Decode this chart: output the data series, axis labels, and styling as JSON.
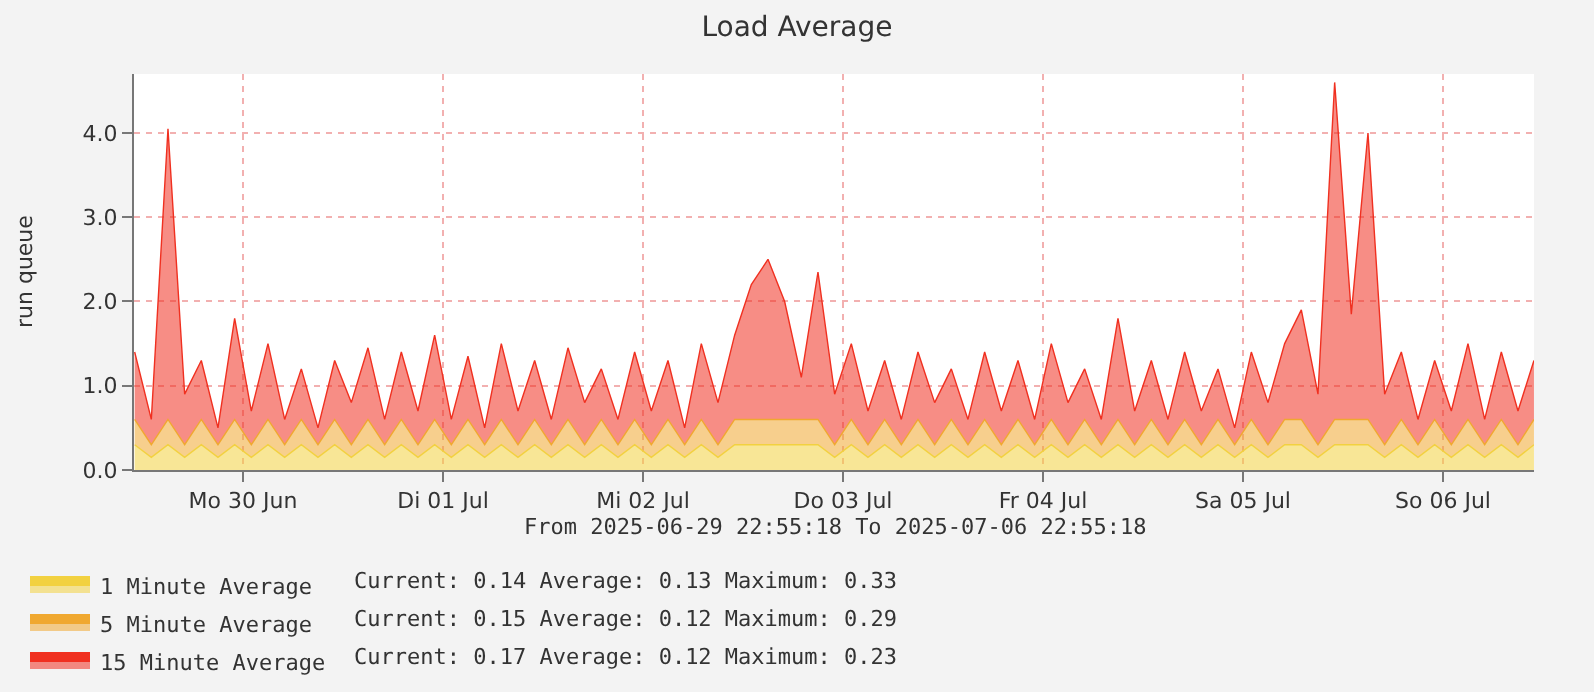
{
  "chart_data": {
    "type": "area",
    "stacked": true,
    "title": "Load Average",
    "ylabel": "run queue",
    "annotations": [
      "From 2025-06-29 22:55:18 To 2025-07-06 22:55:18",
      "Current: 0.14 Average: 0.13 Maximum: 0.33",
      "Current: 0.15 Average: 0.12 Maximum: 0.29",
      "Current: 0.17 Average: 0.12 Maximum: 0.23"
    ],
    "x": [
      "2025-06-29T23:00",
      "2025-06-30T01:00",
      "2025-06-30T03:00",
      "2025-06-30T05:00",
      "2025-06-30T07:00",
      "2025-06-30T09:00",
      "2025-06-30T11:00",
      "2025-06-30T13:00",
      "2025-06-30T15:00",
      "2025-06-30T17:00",
      "2025-06-30T19:00",
      "2025-06-30T21:00",
      "2025-06-30T23:00",
      "2025-07-01T01:00",
      "2025-07-01T03:00",
      "2025-07-01T05:00",
      "2025-07-01T07:00",
      "2025-07-01T09:00",
      "2025-07-01T11:00",
      "2025-07-01T13:00",
      "2025-07-01T15:00",
      "2025-07-01T17:00",
      "2025-07-01T19:00",
      "2025-07-01T21:00",
      "2025-07-01T23:00",
      "2025-07-02T01:00",
      "2025-07-02T03:00",
      "2025-07-02T05:00",
      "2025-07-02T07:00",
      "2025-07-02T09:00",
      "2025-07-02T11:00",
      "2025-07-02T13:00",
      "2025-07-02T15:00",
      "2025-07-02T17:00",
      "2025-07-02T19:00",
      "2025-07-02T21:00",
      "2025-07-02T23:00",
      "2025-07-03T01:00",
      "2025-07-03T03:00",
      "2025-07-03T05:00",
      "2025-07-03T07:00",
      "2025-07-03T09:00",
      "2025-07-03T11:00",
      "2025-07-03T13:00",
      "2025-07-03T15:00",
      "2025-07-03T17:00",
      "2025-07-03T19:00",
      "2025-07-03T21:00",
      "2025-07-03T23:00",
      "2025-07-04T01:00",
      "2025-07-04T03:00",
      "2025-07-04T05:00",
      "2025-07-04T07:00",
      "2025-07-04T09:00",
      "2025-07-04T11:00",
      "2025-07-04T13:00",
      "2025-07-04T15:00",
      "2025-07-04T17:00",
      "2025-07-04T19:00",
      "2025-07-04T21:00",
      "2025-07-04T23:00",
      "2025-07-05T01:00",
      "2025-07-05T03:00",
      "2025-07-05T05:00",
      "2025-07-05T07:00",
      "2025-07-05T09:00",
      "2025-07-05T11:00",
      "2025-07-05T13:00",
      "2025-07-05T15:00",
      "2025-07-05T17:00",
      "2025-07-05T19:00",
      "2025-07-05T21:00",
      "2025-07-05T23:00",
      "2025-07-06T01:00",
      "2025-07-06T03:00",
      "2025-07-06T05:00",
      "2025-07-06T07:00",
      "2025-07-06T09:00",
      "2025-07-06T11:00",
      "2025-07-06T13:00",
      "2025-07-06T15:00",
      "2025-07-06T17:00",
      "2025-07-06T19:00",
      "2025-07-06T21:00",
      "2025-07-06T22:55"
    ],
    "series": [
      {
        "name": "1 Minute Average",
        "color": "#f2d140",
        "values": [
          0.3,
          0.15,
          0.3,
          0.15,
          0.3,
          0.15,
          0.3,
          0.15,
          0.3,
          0.15,
          0.3,
          0.15,
          0.3,
          0.15,
          0.3,
          0.15,
          0.3,
          0.15,
          0.3,
          0.15,
          0.3,
          0.15,
          0.3,
          0.15,
          0.3,
          0.15,
          0.3,
          0.15,
          0.3,
          0.15,
          0.3,
          0.15,
          0.3,
          0.15,
          0.3,
          0.15,
          0.3,
          0.3,
          0.3,
          0.3,
          0.3,
          0.3,
          0.15,
          0.3,
          0.15,
          0.3,
          0.15,
          0.3,
          0.15,
          0.3,
          0.15,
          0.3,
          0.15,
          0.3,
          0.15,
          0.3,
          0.15,
          0.3,
          0.15,
          0.3,
          0.15,
          0.3,
          0.15,
          0.3,
          0.15,
          0.3,
          0.15,
          0.3,
          0.15,
          0.3,
          0.3,
          0.15,
          0.3,
          0.3,
          0.3,
          0.15,
          0.3,
          0.15,
          0.3,
          0.15,
          0.3,
          0.15,
          0.3,
          0.15,
          0.3
        ]
      },
      {
        "name": "5 Minute Average",
        "color": "#f0a830",
        "values": [
          0.3,
          0.15,
          0.3,
          0.15,
          0.3,
          0.15,
          0.3,
          0.15,
          0.3,
          0.15,
          0.3,
          0.15,
          0.3,
          0.15,
          0.3,
          0.15,
          0.3,
          0.15,
          0.3,
          0.15,
          0.3,
          0.15,
          0.3,
          0.15,
          0.3,
          0.15,
          0.3,
          0.15,
          0.3,
          0.15,
          0.3,
          0.15,
          0.3,
          0.15,
          0.3,
          0.15,
          0.3,
          0.3,
          0.3,
          0.3,
          0.3,
          0.3,
          0.15,
          0.3,
          0.15,
          0.3,
          0.15,
          0.3,
          0.15,
          0.3,
          0.15,
          0.3,
          0.15,
          0.3,
          0.15,
          0.3,
          0.15,
          0.3,
          0.15,
          0.3,
          0.15,
          0.3,
          0.15,
          0.3,
          0.15,
          0.3,
          0.15,
          0.3,
          0.15,
          0.3,
          0.3,
          0.15,
          0.3,
          0.3,
          0.3,
          0.15,
          0.3,
          0.15,
          0.3,
          0.15,
          0.3,
          0.15,
          0.3,
          0.15,
          0.3
        ]
      },
      {
        "name": "15 Minute Average",
        "color": "#f03020",
        "values": [
          0.8,
          0.3,
          3.45,
          0.6,
          0.7,
          0.2,
          1.2,
          0.4,
          0.9,
          0.3,
          0.6,
          0.2,
          0.7,
          0.5,
          0.85,
          0.3,
          0.8,
          0.4,
          1.0,
          0.3,
          0.75,
          0.2,
          0.9,
          0.4,
          0.7,
          0.3,
          0.85,
          0.5,
          0.6,
          0.3,
          0.8,
          0.4,
          0.7,
          0.2,
          0.9,
          0.5,
          1.0,
          1.6,
          1.9,
          1.4,
          0.5,
          1.75,
          0.6,
          0.9,
          0.4,
          0.7,
          0.3,
          0.8,
          0.5,
          0.6,
          0.3,
          0.8,
          0.4,
          0.7,
          0.3,
          0.9,
          0.5,
          0.6,
          0.3,
          1.2,
          0.4,
          0.7,
          0.3,
          0.8,
          0.4,
          0.6,
          0.2,
          0.8,
          0.5,
          0.9,
          1.3,
          0.6,
          4.0,
          1.25,
          3.4,
          0.6,
          0.8,
          0.3,
          0.7,
          0.4,
          0.9,
          0.3,
          0.8,
          0.4,
          0.7
        ]
      }
    ],
    "xlim": [
      "2025-06-29T22:55:18",
      "2025-07-06T22:55:18"
    ],
    "xticks": [
      {
        "value": "2025-06-30T12:00",
        "label": "Mo 30 Jun"
      },
      {
        "value": "2025-07-01T12:00",
        "label": "Di 01 Jul"
      },
      {
        "value": "2025-07-02T12:00",
        "label": "Mi 02 Jul"
      },
      {
        "value": "2025-07-03T12:00",
        "label": "Do 03 Jul"
      },
      {
        "value": "2025-07-04T12:00",
        "label": "Fr 04 Jul"
      },
      {
        "value": "2025-07-05T12:00",
        "label": "Sa 05 Jul"
      },
      {
        "value": "2025-07-06T12:00",
        "label": "So 06 Jul"
      }
    ],
    "ylim": [
      0,
      4.7
    ],
    "yticks": [
      {
        "value": 0,
        "label": "0.0"
      },
      {
        "value": 1,
        "label": "1.0"
      },
      {
        "value": 2,
        "label": "2.0"
      },
      {
        "value": 3,
        "label": "3.0"
      },
      {
        "value": 4,
        "label": "4.0"
      }
    ],
    "grid": true,
    "legend": "bottom left"
  }
}
